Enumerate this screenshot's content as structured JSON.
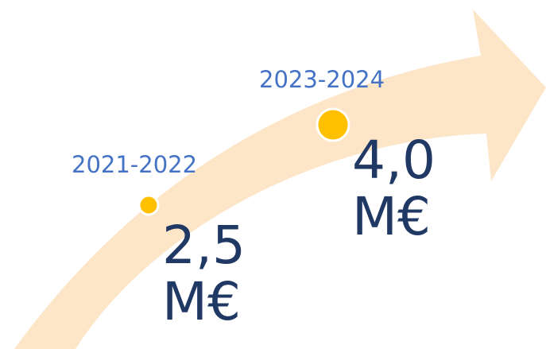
{
  "milestones": [
    {
      "period": "2021-2022",
      "value": "2,5",
      "unit": "M€"
    },
    {
      "period": "2023-2024",
      "value": "4,0",
      "unit": "M€"
    }
  ],
  "colors": {
    "arrow_fill": "#fde5c8",
    "marker_fill": "#ffc000",
    "marker_stroke": "#ffffff",
    "period_text": "#4472c4",
    "amount_text": "#203864"
  }
}
